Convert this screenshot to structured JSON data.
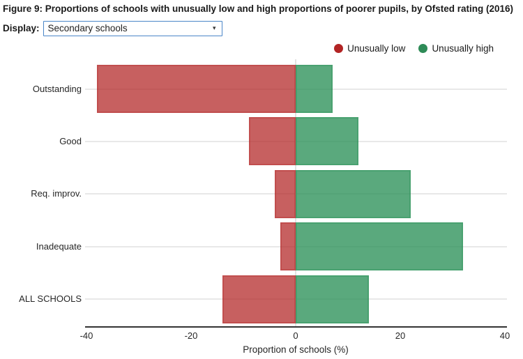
{
  "figure": {
    "title": "Figure 9: Proportions of schools with unusually low and high proportions of poorer pupils, by Ofsted rating (2016)"
  },
  "controls": {
    "display_label": "Display:",
    "display_value": "Secondary schools",
    "dropdown_arrow": "▾"
  },
  "legend": [
    {
      "label": "Unusually low",
      "color": "#b22424"
    },
    {
      "label": "Unusually high",
      "color": "#2e8b57"
    }
  ],
  "chart_data": {
    "type": "bar",
    "orientation": "horizontal-diverging",
    "title": "Figure 9: Proportions of schools with unusually low and high proportions of poorer pupils, by Ofsted rating (2016)",
    "categories": [
      "Outstanding",
      "Good",
      "Req. improv.",
      "Inadequate",
      "ALL SCHOOLS"
    ],
    "series": [
      {
        "name": "Unusually low",
        "values": [
          -38,
          -9,
          -4,
          -3,
          -14
        ],
        "color": "rgba(178,34,34,0.72)",
        "border_color": "rgba(178,34,34,0.28)"
      },
      {
        "name": "Unusually high",
        "values": [
          7,
          12,
          22,
          32,
          14
        ],
        "color": "rgba(38,142,84,0.76)",
        "border_color": "rgba(38,142,84,0.3)"
      }
    ],
    "xlabel": "Proportion of schools (%)",
    "xlim": [
      -40,
      40
    ],
    "xticks": [
      -40,
      -20,
      0,
      20,
      40
    ],
    "grid": "horizontal category gridlines + vertical zero line",
    "legend_position": "top-right"
  }
}
